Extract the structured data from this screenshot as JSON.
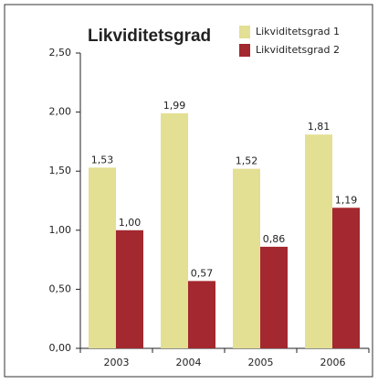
{
  "chart_data": {
    "type": "bar",
    "title": "Likviditetsgrad",
    "categories": [
      "2003",
      "2004",
      "2005",
      "2006"
    ],
    "series": [
      {
        "name": "Likviditetsgrad 1",
        "color": "#e3df93",
        "values": [
          1.53,
          1.99,
          1.52,
          1.81
        ],
        "value_labels": [
          "1,53",
          "1,99",
          "1,52",
          "1,81"
        ]
      },
      {
        "name": "Likviditetsgrad 2",
        "color": "#a3282f",
        "values": [
          1.0,
          0.57,
          0.86,
          1.19
        ],
        "value_labels": [
          "1,00",
          "0,57",
          "0,86",
          "1,19"
        ]
      }
    ],
    "ylim": [
      0,
      2.5
    ],
    "yticks": [
      {
        "value": 0,
        "label": "0,00"
      },
      {
        "value": 0.5,
        "label": "0,50"
      },
      {
        "value": 1,
        "label": "1,00"
      },
      {
        "value": 1.5,
        "label": "1,50"
      },
      {
        "value": 2,
        "label": "2,00"
      },
      {
        "value": 2.5,
        "label": "2,50"
      }
    ],
    "legend": "top-right"
  }
}
